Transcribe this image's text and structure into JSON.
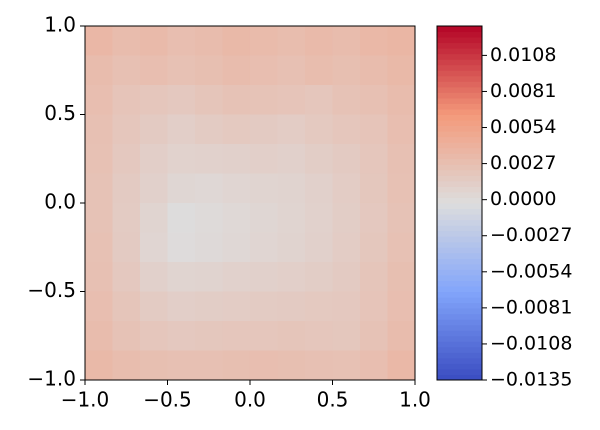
{
  "chart_data": {
    "type": "heatmap",
    "colormap": "coolwarm",
    "x": [
      -0.9167,
      -0.75,
      -0.5833,
      -0.4167,
      -0.25,
      -0.0833,
      0.0833,
      0.25,
      0.4167,
      0.5833,
      0.75,
      0.9167
    ],
    "y": [
      0.9167,
      0.75,
      0.5833,
      0.4167,
      0.25,
      0.0833,
      -0.0833,
      -0.25,
      -0.4167,
      -0.5833,
      -0.75,
      -0.9167
    ],
    "z": [
      [
        0.0035,
        0.003,
        0.0032,
        0.0028,
        0.003,
        0.0033,
        0.0031,
        0.0029,
        0.0032,
        0.003,
        0.0034,
        0.0036
      ],
      [
        0.003,
        0.0026,
        0.0028,
        0.0025,
        0.0027,
        0.003,
        0.0028,
        0.0026,
        0.0029,
        0.0027,
        0.003,
        0.0033
      ],
      [
        0.0028,
        0.0022,
        0.002,
        0.0018,
        0.0021,
        0.0024,
        0.0023,
        0.0022,
        0.002,
        0.0024,
        0.0026,
        0.003
      ],
      [
        0.0026,
        0.002,
        0.0016,
        0.0012,
        0.0015,
        0.0017,
        0.0016,
        0.0014,
        0.0017,
        0.002,
        0.0022,
        0.0028
      ],
      [
        0.0025,
        0.0018,
        0.0012,
        0.0008,
        0.0009,
        0.001,
        0.0011,
        0.001,
        0.0013,
        0.0016,
        0.002,
        0.0026
      ],
      [
        0.0024,
        0.0016,
        0.001,
        0.0004,
        0.0003,
        0.0005,
        0.0006,
        0.0007,
        0.001,
        0.0014,
        0.0019,
        0.0025
      ],
      [
        0.0024,
        0.0015,
        0.0006,
        -0.0002,
        0.0,
        0.0002,
        0.0004,
        0.0006,
        0.0009,
        0.0013,
        0.0018,
        0.0024
      ],
      [
        0.0025,
        0.0016,
        0.0005,
        -0.0001,
        0.0001,
        0.0003,
        0.0005,
        0.0007,
        0.001,
        0.0014,
        0.0019,
        0.0025
      ],
      [
        0.0026,
        0.0018,
        0.001,
        0.0006,
        0.0007,
        0.0009,
        0.001,
        0.0011,
        0.0013,
        0.0016,
        0.0021,
        0.0027
      ],
      [
        0.0028,
        0.0021,
        0.0015,
        0.0012,
        0.0013,
        0.0014,
        0.0015,
        0.0016,
        0.0017,
        0.0018,
        0.0022,
        0.0028
      ],
      [
        0.003,
        0.0024,
        0.002,
        0.0018,
        0.0019,
        0.002,
        0.002,
        0.0021,
        0.002,
        0.0019,
        0.0024,
        0.003
      ],
      [
        0.0033,
        0.0029,
        0.0027,
        0.0026,
        0.0026,
        0.0027,
        0.0028,
        0.0027,
        0.0026,
        0.0025,
        0.0028,
        0.0034
      ]
    ],
    "xlim": [
      -1,
      1
    ],
    "ylim": [
      -1,
      1
    ],
    "xticks": [
      {
        "value": -1,
        "label": "−1.0"
      },
      {
        "value": -0.5,
        "label": "−0.5"
      },
      {
        "value": 0,
        "label": "0.0"
      },
      0.5,
      {
        "value": 1,
        "label": "1.0"
      }
    ],
    "yticks": [
      {
        "value": -1,
        "label": "−1.0"
      },
      {
        "value": -0.5,
        "label": "−0.5"
      },
      {
        "value": 0,
        "label": "0.0"
      },
      0.5,
      {
        "value": 1,
        "label": "1.0"
      }
    ],
    "clim": [
      -0.0135,
      0.013
    ],
    "cticks": [
      {
        "value": -0.0135,
        "label": "−0.0135"
      },
      {
        "value": -0.0108,
        "label": "−0.0108"
      },
      {
        "value": -0.0081,
        "label": "−0.0081"
      },
      {
        "value": -0.0054,
        "label": "−0.0054"
      },
      {
        "value": -0.0027,
        "label": "−0.0027"
      },
      {
        "value": 0,
        "label": "0.0000"
      },
      0.0027,
      0.0054,
      0.0081,
      0.0108
    ]
  }
}
